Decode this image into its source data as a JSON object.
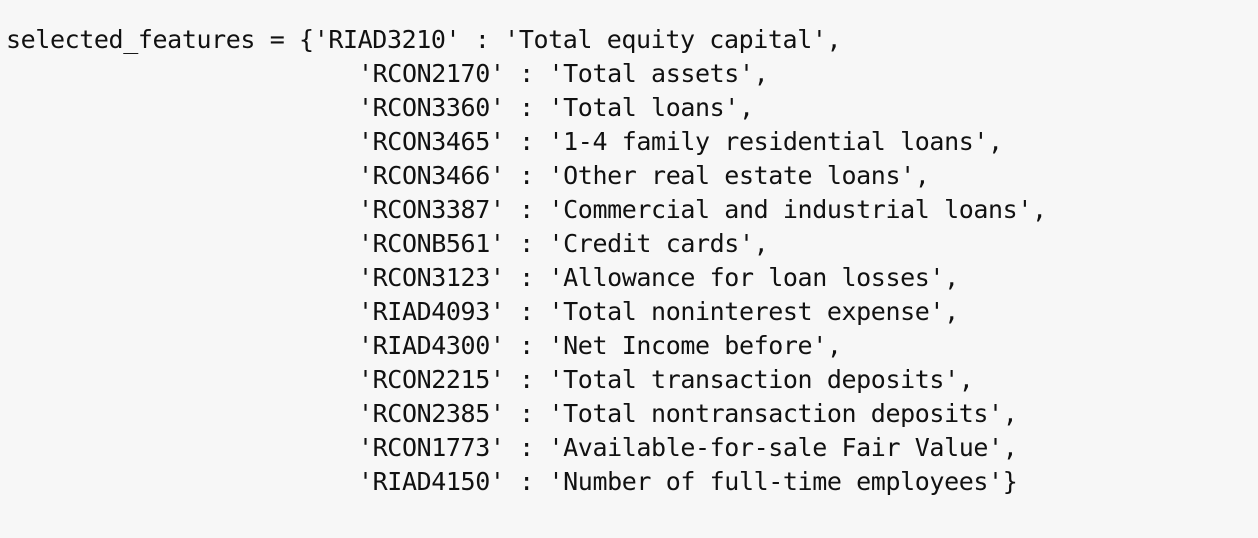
{
  "code": {
    "variable": "selected_features",
    "assignment": " = {",
    "entries": [
      {
        "key": "'RIAD3210'",
        "value": "'Total equity capital'",
        "end": ","
      },
      {
        "key": "'RCON2170'",
        "value": "'Total assets'",
        "end": ","
      },
      {
        "key": "'RCON3360'",
        "value": "'Total loans'",
        "end": ","
      },
      {
        "key": "'RCON3465'",
        "value": "'1-4 family residential loans'",
        "end": ","
      },
      {
        "key": "'RCON3466'",
        "value": "'Other real estate loans'",
        "end": ","
      },
      {
        "key": "'RCON3387'",
        "value": "'Commercial and industrial loans'",
        "end": ","
      },
      {
        "key": "'RCONB561'",
        "value": "'Credit cards'",
        "end": ","
      },
      {
        "key": "'RCON3123'",
        "value": "'Allowance for loan losses'",
        "end": ","
      },
      {
        "key": "'RIAD4093'",
        "value": "'Total noninterest expense'",
        "end": ","
      },
      {
        "key": "'RIAD4300'",
        "value": "'Net Income before'",
        "end": ","
      },
      {
        "key": "'RCON2215'",
        "value": "'Total transaction deposits'",
        "end": ","
      },
      {
        "key": "'RCON2385'",
        "value": "'Total nontransaction deposits'",
        "end": ","
      },
      {
        "key": "'RCON1773'",
        "value": "'Available-for-sale Fair Value'",
        "end": ","
      },
      {
        "key": "'RIAD4150'",
        "value": "'Number of full-time employees'",
        "end": "}"
      }
    ],
    "separator": " : "
  }
}
